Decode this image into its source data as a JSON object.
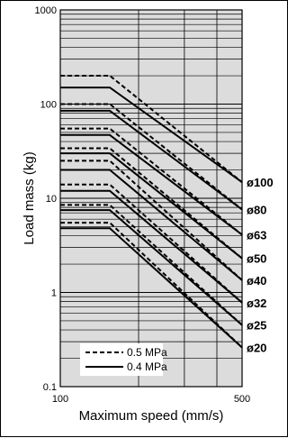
{
  "chart_data": {
    "type": "line",
    "title": "",
    "xlabel": "Maximum speed (mm/s)",
    "ylabel": "Load mass (kg)",
    "xscale": "log",
    "yscale": "log",
    "xlim": [
      100,
      500
    ],
    "ylim": [
      0.1,
      1000
    ],
    "x_tick_labels": [
      "100",
      "500"
    ],
    "y_tick_labels": [
      "0.1",
      "1",
      "10",
      "100",
      "1000"
    ],
    "legend": {
      "placement": "bottom-left",
      "entries": [
        {
          "label": "0.5 MPa",
          "style": "dashed"
        },
        {
          "label": "0.4 MPa",
          "style": "solid"
        }
      ]
    },
    "series": [
      {
        "name": "ø100",
        "pressure_05": {
          "x": [
            100,
            155,
            500
          ],
          "y": [
            200,
            200,
            14.8
          ]
        },
        "pressure_04": {
          "x": [
            100,
            155,
            500
          ],
          "y": [
            150,
            150,
            14.8
          ]
        }
      },
      {
        "name": "ø80",
        "pressure_05": {
          "x": [
            100,
            155,
            500
          ],
          "y": [
            100,
            100,
            7.6
          ]
        },
        "pressure_04": {
          "x": [
            100,
            155,
            500
          ],
          "y": [
            85,
            85,
            7.6
          ]
        }
      },
      {
        "name": "ø63",
        "pressure_05": {
          "x": [
            100,
            155,
            500
          ],
          "y": [
            55,
            55,
            4.1
          ]
        },
        "pressure_04": {
          "x": [
            100,
            155,
            500
          ],
          "y": [
            47,
            47,
            4.1
          ]
        }
      },
      {
        "name": "ø50",
        "pressure_05": {
          "x": [
            100,
            155,
            500
          ],
          "y": [
            34,
            34,
            2.3
          ]
        },
        "pressure_04": {
          "x": [
            100,
            155,
            500
          ],
          "y": [
            30,
            30,
            2.3
          ]
        }
      },
      {
        "name": "ø40",
        "pressure_05": {
          "x": [
            100,
            155,
            500
          ],
          "y": [
            25,
            25,
            1.35
          ]
        },
        "pressure_04": {
          "x": [
            100,
            155,
            500
          ],
          "y": [
            20,
            20,
            1.35
          ]
        }
      },
      {
        "name": "ø32",
        "pressure_05": {
          "x": [
            100,
            155,
            500
          ],
          "y": [
            14,
            14,
            0.78
          ]
        },
        "pressure_04": {
          "x": [
            100,
            155,
            500
          ],
          "y": [
            12,
            12,
            0.78
          ]
        }
      },
      {
        "name": "ø25",
        "pressure_05": {
          "x": [
            100,
            155,
            500
          ],
          "y": [
            8.5,
            8.5,
            0.45
          ]
        },
        "pressure_04": {
          "x": [
            100,
            155,
            500
          ],
          "y": [
            7.5,
            7.5,
            0.45
          ]
        }
      },
      {
        "name": "ø20",
        "pressure_05": {
          "x": [
            100,
            155,
            500
          ],
          "y": [
            5.5,
            5.5,
            0.26
          ]
        },
        "pressure_04": {
          "x": [
            100,
            155,
            500
          ],
          "y": [
            4.8,
            4.8,
            0.26
          ]
        }
      }
    ],
    "colors": {
      "plot_background": "#dcdcdc",
      "line": "#000000"
    }
  }
}
